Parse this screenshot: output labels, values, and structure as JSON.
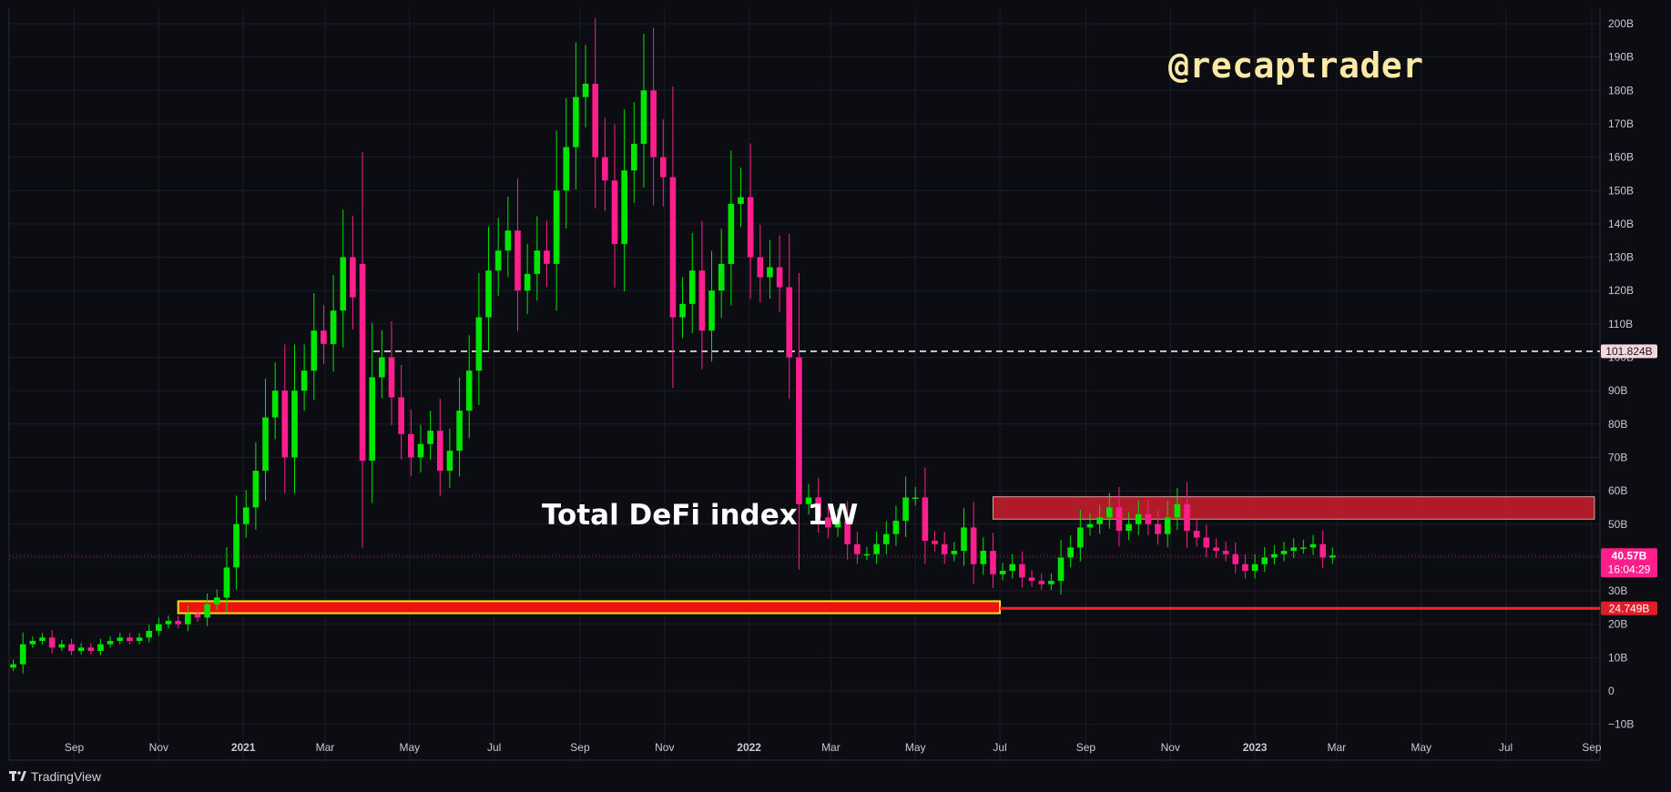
{
  "watermark": "@recaptrader",
  "chart_title": "Total DeFi index 1W",
  "brand": "TradingView",
  "colors": {
    "background": "#0b0d12",
    "grid": "#1b1e27",
    "up": "#00e600",
    "down": "#ff1f8c",
    "support_line": "#ff2222",
    "zone_fill": "#cc1f2e",
    "support_zone_fill": "#f01010",
    "support_zone_border": "#f7e11a",
    "resistance_line": "#ffffff",
    "watermark": "#fde9a6"
  },
  "chart_data": {
    "type": "candlestick",
    "timeframe": "1W",
    "y_unit": "B",
    "ylim": [
      -12,
      203
    ],
    "x_range": [
      "2020-07-16",
      "2023-09-07"
    ],
    "y_ticks": [
      "200B",
      "190B",
      "180B",
      "170B",
      "160B",
      "150B",
      "140B",
      "130B",
      "120B",
      "110B",
      "100B",
      "90B",
      "80B",
      "70B",
      "60B",
      "50B",
      "40B",
      "30B",
      "20B",
      "10B",
      "0",
      "−10B"
    ],
    "x_ticks": [
      "Sep",
      "Nov",
      "2021",
      "Mar",
      "May",
      "Jul",
      "Sep",
      "Nov",
      "2022",
      "Mar",
      "May",
      "Jul",
      "Sep",
      "Nov",
      "2023",
      "Mar",
      "May",
      "Jul",
      "Sep"
    ],
    "price_labels": {
      "resistance": "101.824B",
      "last_price": "40.57B",
      "countdown": "16:04:29",
      "support": "24.749B"
    },
    "levels": {
      "resistance": 101.824,
      "support": 24.749,
      "last_price": 40.57
    },
    "zones": [
      {
        "name": "support-zone",
        "from": "2020-11-15",
        "to": "2022-07-01",
        "low": 23.3,
        "high": 26.9
      },
      {
        "name": "resistance-zone",
        "from": "2022-06-26",
        "to": "2023-09-03",
        "low": 51.5,
        "high": 58.2
      }
    ],
    "closes": [
      8,
      14,
      15,
      16,
      13,
      14,
      12,
      13,
      12,
      14,
      15,
      16,
      15,
      16,
      18,
      20,
      21,
      20,
      23,
      22,
      26,
      28,
      37,
      50,
      55,
      66,
      82,
      90,
      70,
      90,
      96,
      108,
      104,
      114,
      130,
      118,
      69,
      94,
      100,
      88,
      77,
      70,
      74,
      78,
      66,
      72,
      84,
      96,
      112,
      126,
      132,
      138,
      120,
      125,
      132,
      128,
      150,
      163,
      178,
      182,
      160,
      153,
      134,
      156,
      164,
      180,
      160,
      154,
      112,
      116,
      126,
      108,
      120,
      128,
      146,
      148,
      130,
      124,
      127,
      121,
      100,
      56,
      58,
      52,
      49,
      51,
      44,
      41,
      41,
      44,
      47,
      51,
      58,
      58,
      45,
      44,
      41,
      42,
      49,
      38,
      42,
      35,
      36,
      38,
      34,
      33,
      32,
      33,
      40,
      43,
      49,
      50,
      52,
      55,
      48,
      50,
      53,
      50,
      47,
      52,
      56,
      48,
      46,
      43,
      42,
      41,
      38,
      36,
      38,
      40,
      41,
      42,
      43,
      43,
      44,
      40,
      40.57
    ],
    "opens": [
      7,
      8,
      14,
      15,
      16,
      13,
      14,
      12,
      13,
      12,
      14,
      15,
      16,
      15,
      16,
      18,
      20,
      21,
      20,
      23,
      22,
      26,
      28,
      37,
      50,
      55,
      66,
      82,
      90,
      70,
      90,
      96,
      108,
      104,
      114,
      130,
      128,
      69,
      94,
      100,
      88,
      77,
      70,
      74,
      78,
      66,
      72,
      84,
      96,
      112,
      126,
      132,
      138,
      120,
      125,
      132,
      128,
      150,
      163,
      178,
      182,
      160,
      153,
      134,
      156,
      164,
      180,
      160,
      154,
      112,
      116,
      126,
      108,
      120,
      128,
      146,
      148,
      130,
      124,
      127,
      121,
      100,
      56,
      58,
      52,
      49,
      51,
      44,
      41,
      41,
      44,
      47,
      51,
      58,
      58,
      45,
      44,
      41,
      42,
      49,
      38,
      42,
      35,
      36,
      38,
      34,
      33,
      32,
      33,
      40,
      43,
      49,
      50,
      52,
      55,
      48,
      50,
      53,
      50,
      47,
      52,
      56,
      48,
      46,
      43,
      42,
      41,
      38,
      36,
      38,
      40,
      41,
      42,
      43,
      43,
      44,
      40
    ]
  }
}
